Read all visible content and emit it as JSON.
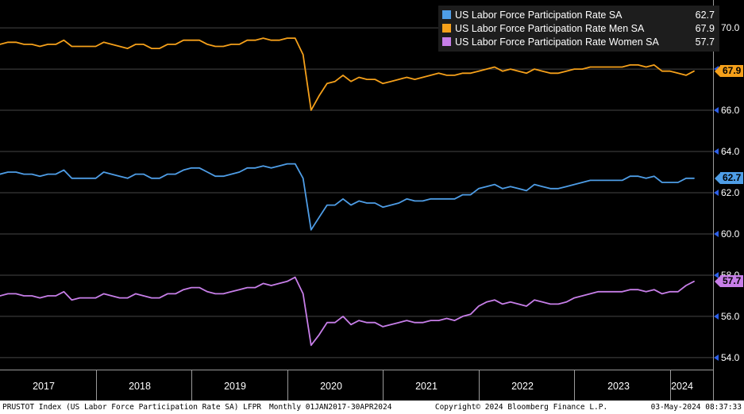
{
  "legend": {
    "items": [
      {
        "label": "US Labor Force Participation Rate SA",
        "value": "62.7",
        "color": "#4e9de6"
      },
      {
        "label": "US Labor Force Participation Rate Men SA",
        "value": "67.9",
        "color": "#f5a01a"
      },
      {
        "label": "US Labor Force Participation Rate Women SA",
        "value": "57.7",
        "color": "#c77ee8"
      }
    ]
  },
  "status_bar": {
    "ticker_info": "PRUSTOT Index (US Labor Force Participation Rate SA) LFPR",
    "period_info": "Monthly 01JAN2017-30APR2024",
    "copyright": "Copyright© 2024 Bloomberg Finance L.P.",
    "timestamp": "03-May-2024 08:37:33"
  },
  "colors": {
    "background": "#000000",
    "grid": "#464646",
    "axis_line": "#9a9a9a",
    "axis_text": "#ffffff",
    "tick_arrow": "#2d5fe8",
    "legend_bg": "#1d1d1d",
    "footer_bg": "#ffffff",
    "footer_text": "#000000"
  },
  "chart_data": {
    "type": "line",
    "title": "",
    "xlabel": "",
    "ylabel": "",
    "grid": "horizontal",
    "legend_position": "top-right",
    "ylim": [
      53.42,
      71.35
    ],
    "yticks": [
      70.0,
      68.0,
      66.0,
      64.0,
      62.0,
      60.0,
      58.0,
      56.0,
      54.0
    ],
    "x_tick_labels": [
      "2017",
      "2018",
      "2019",
      "2020",
      "2021",
      "2022",
      "2023",
      "2024"
    ],
    "x": [
      "2017-01",
      "2017-02",
      "2017-03",
      "2017-04",
      "2017-05",
      "2017-06",
      "2017-07",
      "2017-08",
      "2017-09",
      "2017-10",
      "2017-11",
      "2017-12",
      "2018-01",
      "2018-02",
      "2018-03",
      "2018-04",
      "2018-05",
      "2018-06",
      "2018-07",
      "2018-08",
      "2018-09",
      "2018-10",
      "2018-11",
      "2018-12",
      "2019-01",
      "2019-02",
      "2019-03",
      "2019-04",
      "2019-05",
      "2019-06",
      "2019-07",
      "2019-08",
      "2019-09",
      "2019-10",
      "2019-11",
      "2019-12",
      "2020-01",
      "2020-02",
      "2020-03",
      "2020-04",
      "2020-05",
      "2020-06",
      "2020-07",
      "2020-08",
      "2020-09",
      "2020-10",
      "2020-11",
      "2020-12",
      "2021-01",
      "2021-02",
      "2021-03",
      "2021-04",
      "2021-05",
      "2021-06",
      "2021-07",
      "2021-08",
      "2021-09",
      "2021-10",
      "2021-11",
      "2021-12",
      "2022-01",
      "2022-02",
      "2022-03",
      "2022-04",
      "2022-05",
      "2022-06",
      "2022-07",
      "2022-08",
      "2022-09",
      "2022-10",
      "2022-11",
      "2022-12",
      "2023-01",
      "2023-02",
      "2023-03",
      "2023-04",
      "2023-05",
      "2023-06",
      "2023-07",
      "2023-08",
      "2023-09",
      "2023-10",
      "2023-11",
      "2023-12",
      "2024-01",
      "2024-02",
      "2024-03",
      "2024-04"
    ],
    "series": [
      {
        "id": "total",
        "name": "US Labor Force Participation Rate SA",
        "color": "#4e9de6",
        "values": [
          62.9,
          63.0,
          63.0,
          62.9,
          62.9,
          62.8,
          62.9,
          62.9,
          63.1,
          62.7,
          62.7,
          62.7,
          62.7,
          63.0,
          62.9,
          62.8,
          62.7,
          62.9,
          62.9,
          62.7,
          62.7,
          62.9,
          62.9,
          63.1,
          63.2,
          63.2,
          63.0,
          62.8,
          62.8,
          62.9,
          63.0,
          63.2,
          63.2,
          63.3,
          63.2,
          63.3,
          63.4,
          63.4,
          62.7,
          60.2,
          60.8,
          61.4,
          61.4,
          61.7,
          61.4,
          61.6,
          61.5,
          61.5,
          61.3,
          61.4,
          61.5,
          61.7,
          61.6,
          61.6,
          61.7,
          61.7,
          61.7,
          61.7,
          61.9,
          61.9,
          62.2,
          62.3,
          62.4,
          62.2,
          62.3,
          62.2,
          62.1,
          62.4,
          62.3,
          62.2,
          62.2,
          62.3,
          62.4,
          62.5,
          62.6,
          62.6,
          62.6,
          62.6,
          62.6,
          62.8,
          62.8,
          62.7,
          62.8,
          62.5,
          62.5,
          62.5,
          62.7,
          62.7
        ]
      },
      {
        "id": "men",
        "name": "US Labor Force Participation Rate Men SA",
        "color": "#f5a01a",
        "values": [
          69.2,
          69.3,
          69.3,
          69.2,
          69.2,
          69.1,
          69.2,
          69.2,
          69.4,
          69.1,
          69.1,
          69.1,
          69.1,
          69.3,
          69.2,
          69.1,
          69.0,
          69.2,
          69.2,
          69.0,
          69.0,
          69.2,
          69.2,
          69.4,
          69.4,
          69.4,
          69.2,
          69.1,
          69.1,
          69.2,
          69.2,
          69.4,
          69.4,
          69.5,
          69.4,
          69.4,
          69.5,
          69.5,
          68.7,
          66.0,
          66.7,
          67.3,
          67.4,
          67.7,
          67.4,
          67.6,
          67.5,
          67.5,
          67.3,
          67.4,
          67.5,
          67.6,
          67.5,
          67.6,
          67.7,
          67.8,
          67.7,
          67.7,
          67.8,
          67.8,
          67.9,
          68.0,
          68.1,
          67.9,
          68.0,
          67.9,
          67.8,
          68.0,
          67.9,
          67.8,
          67.8,
          67.9,
          68.0,
          68.0,
          68.1,
          68.1,
          68.1,
          68.1,
          68.1,
          68.2,
          68.2,
          68.1,
          68.2,
          67.9,
          67.9,
          67.8,
          67.7,
          67.9
        ]
      },
      {
        "id": "women",
        "name": "US Labor Force Participation Rate Women SA",
        "color": "#c77ee8",
        "values": [
          57.0,
          57.1,
          57.1,
          57.0,
          57.0,
          56.9,
          57.0,
          57.0,
          57.2,
          56.8,
          56.9,
          56.9,
          56.9,
          57.1,
          57.0,
          56.9,
          56.9,
          57.1,
          57.0,
          56.9,
          56.9,
          57.1,
          57.1,
          57.3,
          57.4,
          57.4,
          57.2,
          57.1,
          57.1,
          57.2,
          57.3,
          57.4,
          57.4,
          57.6,
          57.5,
          57.6,
          57.7,
          57.9,
          57.1,
          54.6,
          55.1,
          55.7,
          55.7,
          56.0,
          55.6,
          55.8,
          55.7,
          55.7,
          55.5,
          55.6,
          55.7,
          55.8,
          55.7,
          55.7,
          55.8,
          55.8,
          55.9,
          55.8,
          56.0,
          56.1,
          56.5,
          56.7,
          56.8,
          56.6,
          56.7,
          56.6,
          56.5,
          56.8,
          56.7,
          56.6,
          56.6,
          56.7,
          56.9,
          57.0,
          57.1,
          57.2,
          57.2,
          57.2,
          57.2,
          57.3,
          57.3,
          57.2,
          57.3,
          57.1,
          57.2,
          57.2,
          57.5,
          57.7
        ]
      }
    ]
  }
}
